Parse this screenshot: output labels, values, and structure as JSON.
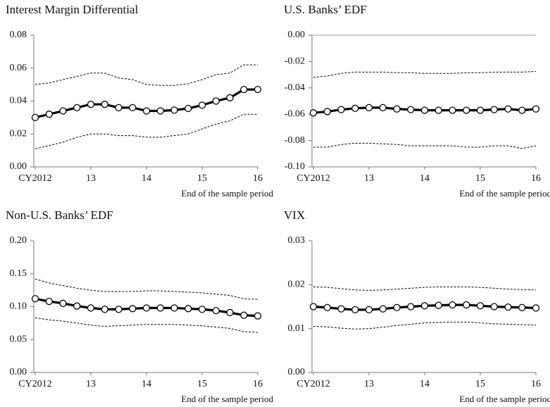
{
  "chart_data": [
    {
      "type": "line",
      "title": "Interest Margin Differential",
      "xlabel": "End of the sample period",
      "categories": [
        "CY2012",
        null,
        null,
        null,
        "13",
        null,
        null,
        null,
        "14",
        null,
        null,
        null,
        "15",
        null,
        null,
        null,
        "16"
      ],
      "ylim": [
        0,
        0.08
      ],
      "yticks": [
        {
          "value": 0,
          "label": "0.00"
        },
        {
          "value": 0.02,
          "label": "0.02"
        },
        {
          "value": 0.04,
          "label": "0.04"
        },
        {
          "value": 0.06,
          "label": "0.06"
        },
        {
          "value": 0.08,
          "label": "0.08"
        }
      ],
      "series": [
        {
          "color": "#000000",
          "line_style": "solid",
          "marker": "circle",
          "values": [
            0.03,
            0.032,
            0.034,
            0.036,
            0.038,
            0.038,
            0.036,
            0.036,
            0.034,
            0.034,
            0.0345,
            0.0355,
            0.0375,
            0.04,
            0.042,
            0.047,
            0.047
          ]
        },
        {
          "color": "#000000",
          "line_style": "dashed",
          "values": [
            0.05,
            0.051,
            0.053,
            0.055,
            0.057,
            0.057,
            0.054,
            0.053,
            0.05,
            0.0495,
            0.0495,
            0.0505,
            0.053,
            0.056,
            0.057,
            0.062,
            0.062
          ]
        },
        {
          "color": "#000000",
          "line_style": "dashed",
          "values": [
            0.011,
            0.013,
            0.015,
            0.018,
            0.02,
            0.02,
            0.019,
            0.019,
            0.018,
            0.018,
            0.019,
            0.02,
            0.023,
            0.026,
            0.028,
            0.032,
            0.032
          ]
        }
      ]
    },
    {
      "type": "line",
      "title": "U.S. Banks’ EDF",
      "xlabel": "End of the sample period",
      "categories": [
        "CY2012",
        null,
        null,
        null,
        "13",
        null,
        null,
        null,
        "14",
        null,
        null,
        null,
        "15",
        null,
        null,
        null,
        "16"
      ],
      "ylim": [
        -0.1,
        0
      ],
      "yticks": [
        {
          "value": -0.1,
          "label": "-0.10"
        },
        {
          "value": -0.08,
          "label": "-0.08"
        },
        {
          "value": -0.06,
          "label": "-0.06"
        },
        {
          "value": -0.04,
          "label": "-0.04"
        },
        {
          "value": -0.02,
          "label": "-0.02"
        },
        {
          "value": 0,
          "label": "0.00"
        }
      ],
      "series": [
        {
          "color": "#000000",
          "line_style": "solid",
          "marker": "circle",
          "values": [
            -0.059,
            -0.058,
            -0.0565,
            -0.0555,
            -0.055,
            -0.055,
            -0.056,
            -0.0565,
            -0.057,
            -0.057,
            -0.057,
            -0.057,
            -0.057,
            -0.0565,
            -0.056,
            -0.057,
            -0.056
          ]
        },
        {
          "color": "#000000",
          "line_style": "dashed",
          "values": [
            -0.032,
            -0.031,
            -0.029,
            -0.028,
            -0.028,
            -0.028,
            -0.0285,
            -0.0285,
            -0.029,
            -0.029,
            -0.029,
            -0.0285,
            -0.0285,
            -0.028,
            -0.028,
            -0.028,
            -0.0275
          ]
        },
        {
          "color": "#000000",
          "line_style": "dashed",
          "values": [
            -0.085,
            -0.085,
            -0.083,
            -0.082,
            -0.082,
            -0.0825,
            -0.083,
            -0.084,
            -0.084,
            -0.084,
            -0.084,
            -0.085,
            -0.085,
            -0.084,
            -0.084,
            -0.086,
            -0.084
          ]
        }
      ]
    },
    {
      "type": "line",
      "title": "Non-U.S. Banks’ EDF",
      "xlabel": "End of the sample period",
      "categories": [
        "CY2012",
        null,
        null,
        null,
        "13",
        null,
        null,
        null,
        "14",
        null,
        null,
        null,
        "15",
        null,
        null,
        null,
        "16"
      ],
      "ylim": [
        0,
        0.2
      ],
      "yticks": [
        {
          "value": 0,
          "label": "0.00"
        },
        {
          "value": 0.05,
          "label": "0.05"
        },
        {
          "value": 0.1,
          "label": "0.10"
        },
        {
          "value": 0.15,
          "label": "0.15"
        },
        {
          "value": 0.2,
          "label": "0.20"
        }
      ],
      "series": [
        {
          "color": "#000000",
          "line_style": "solid",
          "marker": "circle",
          "values": [
            0.112,
            0.108,
            0.105,
            0.101,
            0.098,
            0.096,
            0.096,
            0.097,
            0.098,
            0.098,
            0.098,
            0.097,
            0.096,
            0.094,
            0.091,
            0.087,
            0.086
          ]
        },
        {
          "color": "#000000",
          "line_style": "dashed",
          "values": [
            0.142,
            0.136,
            0.132,
            0.128,
            0.125,
            0.123,
            0.123,
            0.123,
            0.124,
            0.124,
            0.123,
            0.122,
            0.121,
            0.119,
            0.117,
            0.112,
            0.111
          ]
        },
        {
          "color": "#000000",
          "line_style": "dashed",
          "values": [
            0.083,
            0.08,
            0.078,
            0.075,
            0.072,
            0.07,
            0.071,
            0.072,
            0.073,
            0.073,
            0.073,
            0.072,
            0.071,
            0.069,
            0.067,
            0.062,
            0.061
          ]
        }
      ]
    },
    {
      "type": "line",
      "title": "VIX",
      "xlabel": "End of the sample period",
      "categories": [
        "CY2012",
        null,
        null,
        null,
        "13",
        null,
        null,
        null,
        "14",
        null,
        null,
        null,
        "15",
        null,
        null,
        null,
        "16"
      ],
      "ylim": [
        0,
        0.03
      ],
      "yticks": [
        {
          "value": 0,
          "label": "0.00"
        },
        {
          "value": 0.01,
          "label": "0.01"
        },
        {
          "value": 0.02,
          "label": "0.02"
        },
        {
          "value": 0.03,
          "label": "0.03"
        }
      ],
      "series": [
        {
          "color": "#000000",
          "line_style": "solid",
          "marker": "circle",
          "values": [
            0.015,
            0.0148,
            0.0145,
            0.0143,
            0.0143,
            0.0145,
            0.0148,
            0.015,
            0.0152,
            0.0153,
            0.0154,
            0.0154,
            0.0152,
            0.015,
            0.0149,
            0.0148,
            0.0147
          ]
        },
        {
          "color": "#000000",
          "line_style": "dashed",
          "values": [
            0.0195,
            0.0194,
            0.0191,
            0.0188,
            0.0187,
            0.0188,
            0.019,
            0.0192,
            0.0194,
            0.0195,
            0.0195,
            0.0195,
            0.0194,
            0.0192,
            0.019,
            0.0189,
            0.0188
          ]
        },
        {
          "color": "#000000",
          "line_style": "dashed",
          "values": [
            0.0105,
            0.0104,
            0.0101,
            0.0099,
            0.01,
            0.0103,
            0.0107,
            0.011,
            0.0113,
            0.0114,
            0.0115,
            0.0115,
            0.0113,
            0.0111,
            0.011,
            0.0109,
            0.0108
          ]
        }
      ]
    }
  ]
}
